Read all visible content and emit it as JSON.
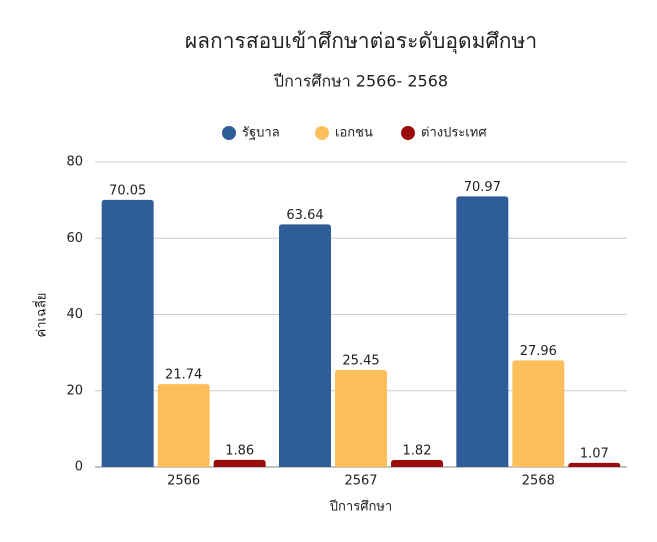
{
  "chart_data": {
    "type": "bar",
    "title": "ผลการสอบเข้าศึกษาต่อระดับอุดมศึกษา",
    "subtitle": "ปีการศึกษา 2566- 2568",
    "x_label": "ปีการศึกษา",
    "y_label": "ค่าเฉลี่ย",
    "categories": [
      "2566",
      "2567",
      "2568"
    ],
    "series": [
      {
        "name": "รัฐบาล",
        "color": "#2e5d98",
        "values": [
          70.05,
          63.64,
          70.97
        ]
      },
      {
        "name": "เอกชน",
        "color": "#fdbf5b",
        "values": [
          21.74,
          25.45,
          27.96
        ]
      },
      {
        "name": "ต่างประเทศ",
        "color": "#9c0b0b",
        "values": [
          1.86,
          1.82,
          1.07
        ]
      }
    ],
    "ylim": [
      0,
      80
    ],
    "yticks": [
      0,
      20,
      40,
      60,
      80
    ],
    "grid": true,
    "legend": "top"
  }
}
